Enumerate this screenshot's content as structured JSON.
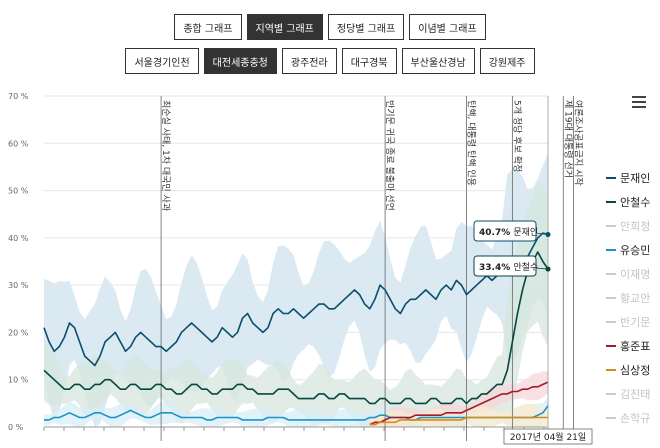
{
  "tabs_row1": [
    {
      "label": "종합 그래프",
      "active": false
    },
    {
      "label": "지역별 그래프",
      "active": true
    },
    {
      "label": "정당별 그래프",
      "active": false
    },
    {
      "label": "이념별 그래프",
      "active": false
    }
  ],
  "tabs_row2": [
    {
      "label": "서울경기인천",
      "active": false
    },
    {
      "label": "대전세종충청",
      "active": true
    },
    {
      "label": "광주전라",
      "active": false
    },
    {
      "label": "대구경북",
      "active": false
    },
    {
      "label": "부산울산경남",
      "active": false
    },
    {
      "label": "강원제주",
      "active": false
    }
  ],
  "chart_data": {
    "type": "line",
    "title": "",
    "xlabel": "",
    "ylabel": "",
    "ylim": [
      0,
      70
    ],
    "yticks": [
      "0 %",
      "10 %",
      "20 %",
      "30 %",
      "40 %",
      "50 %",
      "60 %",
      "70 %"
    ],
    "x_count": 100,
    "crosshair_label": "2017년 04월 21일",
    "events": [
      {
        "x": 23,
        "label": "최순실 사태, 1차 대국민 사과"
      },
      {
        "x": 67,
        "label": "반기문 귀국 종료 불출마 선언"
      },
      {
        "x": 83,
        "label": "탄핵, 대통령 탄핵 인용"
      },
      {
        "x": 92,
        "label": "5개 정당 후보 확정"
      },
      {
        "x": 102,
        "label": "제 19대 대통령 선거"
      },
      {
        "x": 104,
        "label": "여론조사공표금지 시작"
      }
    ],
    "tooltips": [
      {
        "pct": "40.7%",
        "name": "문재인"
      },
      {
        "pct": "33.4%",
        "name": "안철수"
      }
    ],
    "series": [
      {
        "name": "문재인",
        "color": "#0a4f6e",
        "band_color": "#cfe2ef",
        "active": true,
        "values": [
          21,
          18,
          16,
          17,
          19,
          22,
          21,
          18,
          15,
          14,
          13,
          15,
          18,
          19,
          20,
          18,
          16,
          17,
          19,
          20,
          19,
          18,
          17,
          17,
          16,
          17,
          18,
          20,
          21,
          22,
          21,
          20,
          19,
          18,
          19,
          21,
          20,
          19,
          20,
          23,
          24,
          22,
          21,
          20,
          21,
          24,
          25,
          24,
          24,
          25,
          24,
          23,
          24,
          25,
          26,
          26,
          25,
          25,
          26,
          27,
          28,
          29,
          28,
          26,
          25,
          27,
          30,
          29,
          27,
          25,
          24,
          26,
          27,
          27,
          28,
          29,
          28,
          27,
          29,
          30,
          29,
          31,
          30,
          28,
          29,
          30,
          31,
          32,
          31,
          32,
          33,
          34,
          34,
          35,
          36,
          36,
          38,
          40,
          41,
          40.7
        ]
      },
      {
        "name": "안철수",
        "color": "#07473f",
        "band_color": "#d5e6dc",
        "active": true,
        "values": [
          12,
          11,
          10,
          9,
          8,
          8,
          9,
          9,
          8,
          8,
          9,
          9,
          10,
          10,
          9,
          8,
          8,
          9,
          9,
          8,
          8,
          8,
          9,
          9,
          8,
          8,
          7,
          7,
          8,
          9,
          9,
          8,
          8,
          7,
          7,
          8,
          8,
          8,
          9,
          9,
          8,
          8,
          7,
          7,
          7,
          7,
          8,
          8,
          8,
          7,
          6,
          6,
          6,
          6,
          7,
          7,
          6,
          6,
          7,
          7,
          6,
          6,
          6,
          6,
          5,
          5,
          6,
          6,
          5,
          5,
          5,
          6,
          6,
          5,
          5,
          5,
          6,
          6,
          5,
          5,
          5,
          6,
          6,
          5,
          6,
          6,
          7,
          7,
          8,
          9,
          9,
          12,
          18,
          24,
          29,
          33,
          35,
          37,
          35,
          33.4
        ]
      },
      {
        "name": "안희정",
        "color": "#cccccc",
        "active": false,
        "values": []
      },
      {
        "name": "유승민",
        "color": "#1c93c7",
        "band_color": "#d8eef7",
        "active": true,
        "values": [
          1.5,
          1.5,
          2,
          2,
          2.5,
          3,
          2.5,
          2,
          2,
          2.5,
          3,
          3,
          2.5,
          2,
          2,
          2.5,
          3,
          3.5,
          3,
          2.5,
          2,
          2,
          2.5,
          3,
          3,
          3,
          2.5,
          2,
          2,
          2,
          2,
          2,
          1.5,
          1.5,
          2,
          2,
          2,
          2,
          2,
          1.5,
          1.5,
          1.5,
          1.5,
          1.5,
          2,
          2,
          2,
          2,
          1.5,
          1.5,
          1.5,
          1.5,
          1.5,
          1.5,
          1.5,
          1.5,
          1.5,
          1.5,
          1.5,
          1.5,
          1.5,
          1.5,
          1.5,
          1.5,
          2,
          2,
          2.5,
          2.5,
          2,
          2,
          2,
          2,
          1.5,
          1.5,
          2,
          2,
          2,
          2,
          2,
          2,
          2,
          2,
          2,
          2,
          2,
          2,
          2,
          2,
          2,
          2,
          2,
          2,
          2,
          2,
          2,
          2,
          2,
          2.5,
          3,
          4.5
        ]
      },
      {
        "name": "이재명",
        "color": "#cccccc",
        "active": false,
        "values": []
      },
      {
        "name": "황교안",
        "color": "#cccccc",
        "active": false,
        "values": []
      },
      {
        "name": "반기문",
        "color": "#cccccc",
        "active": false,
        "values": []
      },
      {
        "name": "홍준표",
        "color": "#a31b2b",
        "band_color": "#f5d6da",
        "active": true,
        "values": [
          null,
          null,
          null,
          null,
          null,
          null,
          null,
          null,
          null,
          null,
          null,
          null,
          null,
          null,
          null,
          null,
          null,
          null,
          null,
          null,
          null,
          null,
          null,
          null,
          null,
          null,
          null,
          null,
          null,
          null,
          null,
          null,
          null,
          null,
          null,
          null,
          null,
          null,
          null,
          null,
          null,
          null,
          null,
          null,
          null,
          null,
          null,
          null,
          null,
          null,
          null,
          null,
          null,
          null,
          null,
          null,
          null,
          null,
          null,
          null,
          null,
          null,
          null,
          null,
          0.5,
          1,
          1,
          1.5,
          2,
          2,
          2,
          2,
          2,
          2.5,
          2.5,
          2.5,
          2.5,
          2.5,
          2.5,
          3,
          3,
          3,
          3,
          3.5,
          4,
          4.5,
          5,
          5.5,
          6,
          6.5,
          7,
          7,
          7.5,
          7.5,
          8,
          8,
          8.5,
          8.5,
          9,
          9.5
        ]
      },
      {
        "name": "심상정",
        "color": "#cf8e1c",
        "band_color": "#f8ebcf",
        "active": true,
        "values": [
          null,
          null,
          null,
          null,
          null,
          null,
          null,
          null,
          null,
          null,
          null,
          null,
          null,
          null,
          null,
          null,
          null,
          null,
          null,
          null,
          null,
          null,
          null,
          null,
          null,
          null,
          null,
          null,
          null,
          null,
          null,
          null,
          null,
          null,
          null,
          null,
          null,
          null,
          null,
          null,
          null,
          null,
          null,
          null,
          null,
          null,
          null,
          null,
          null,
          null,
          null,
          null,
          null,
          null,
          null,
          null,
          null,
          null,
          null,
          null,
          null,
          null,
          null,
          null,
          0.5,
          0.5,
          1,
          1,
          1,
          1,
          1.5,
          1.5,
          1.5,
          1.5,
          1.5,
          1.5,
          1.5,
          1.5,
          1.5,
          1.5,
          1.5,
          1.5,
          1.5,
          2,
          2,
          2,
          2,
          2,
          2,
          2,
          2,
          2,
          2,
          2,
          2,
          2,
          2,
          2,
          2,
          2
        ]
      },
      {
        "name": "김진태",
        "color": "#cccccc",
        "active": false,
        "values": []
      },
      {
        "name": "손학규",
        "color": "#cccccc",
        "active": false,
        "values": []
      }
    ]
  }
}
